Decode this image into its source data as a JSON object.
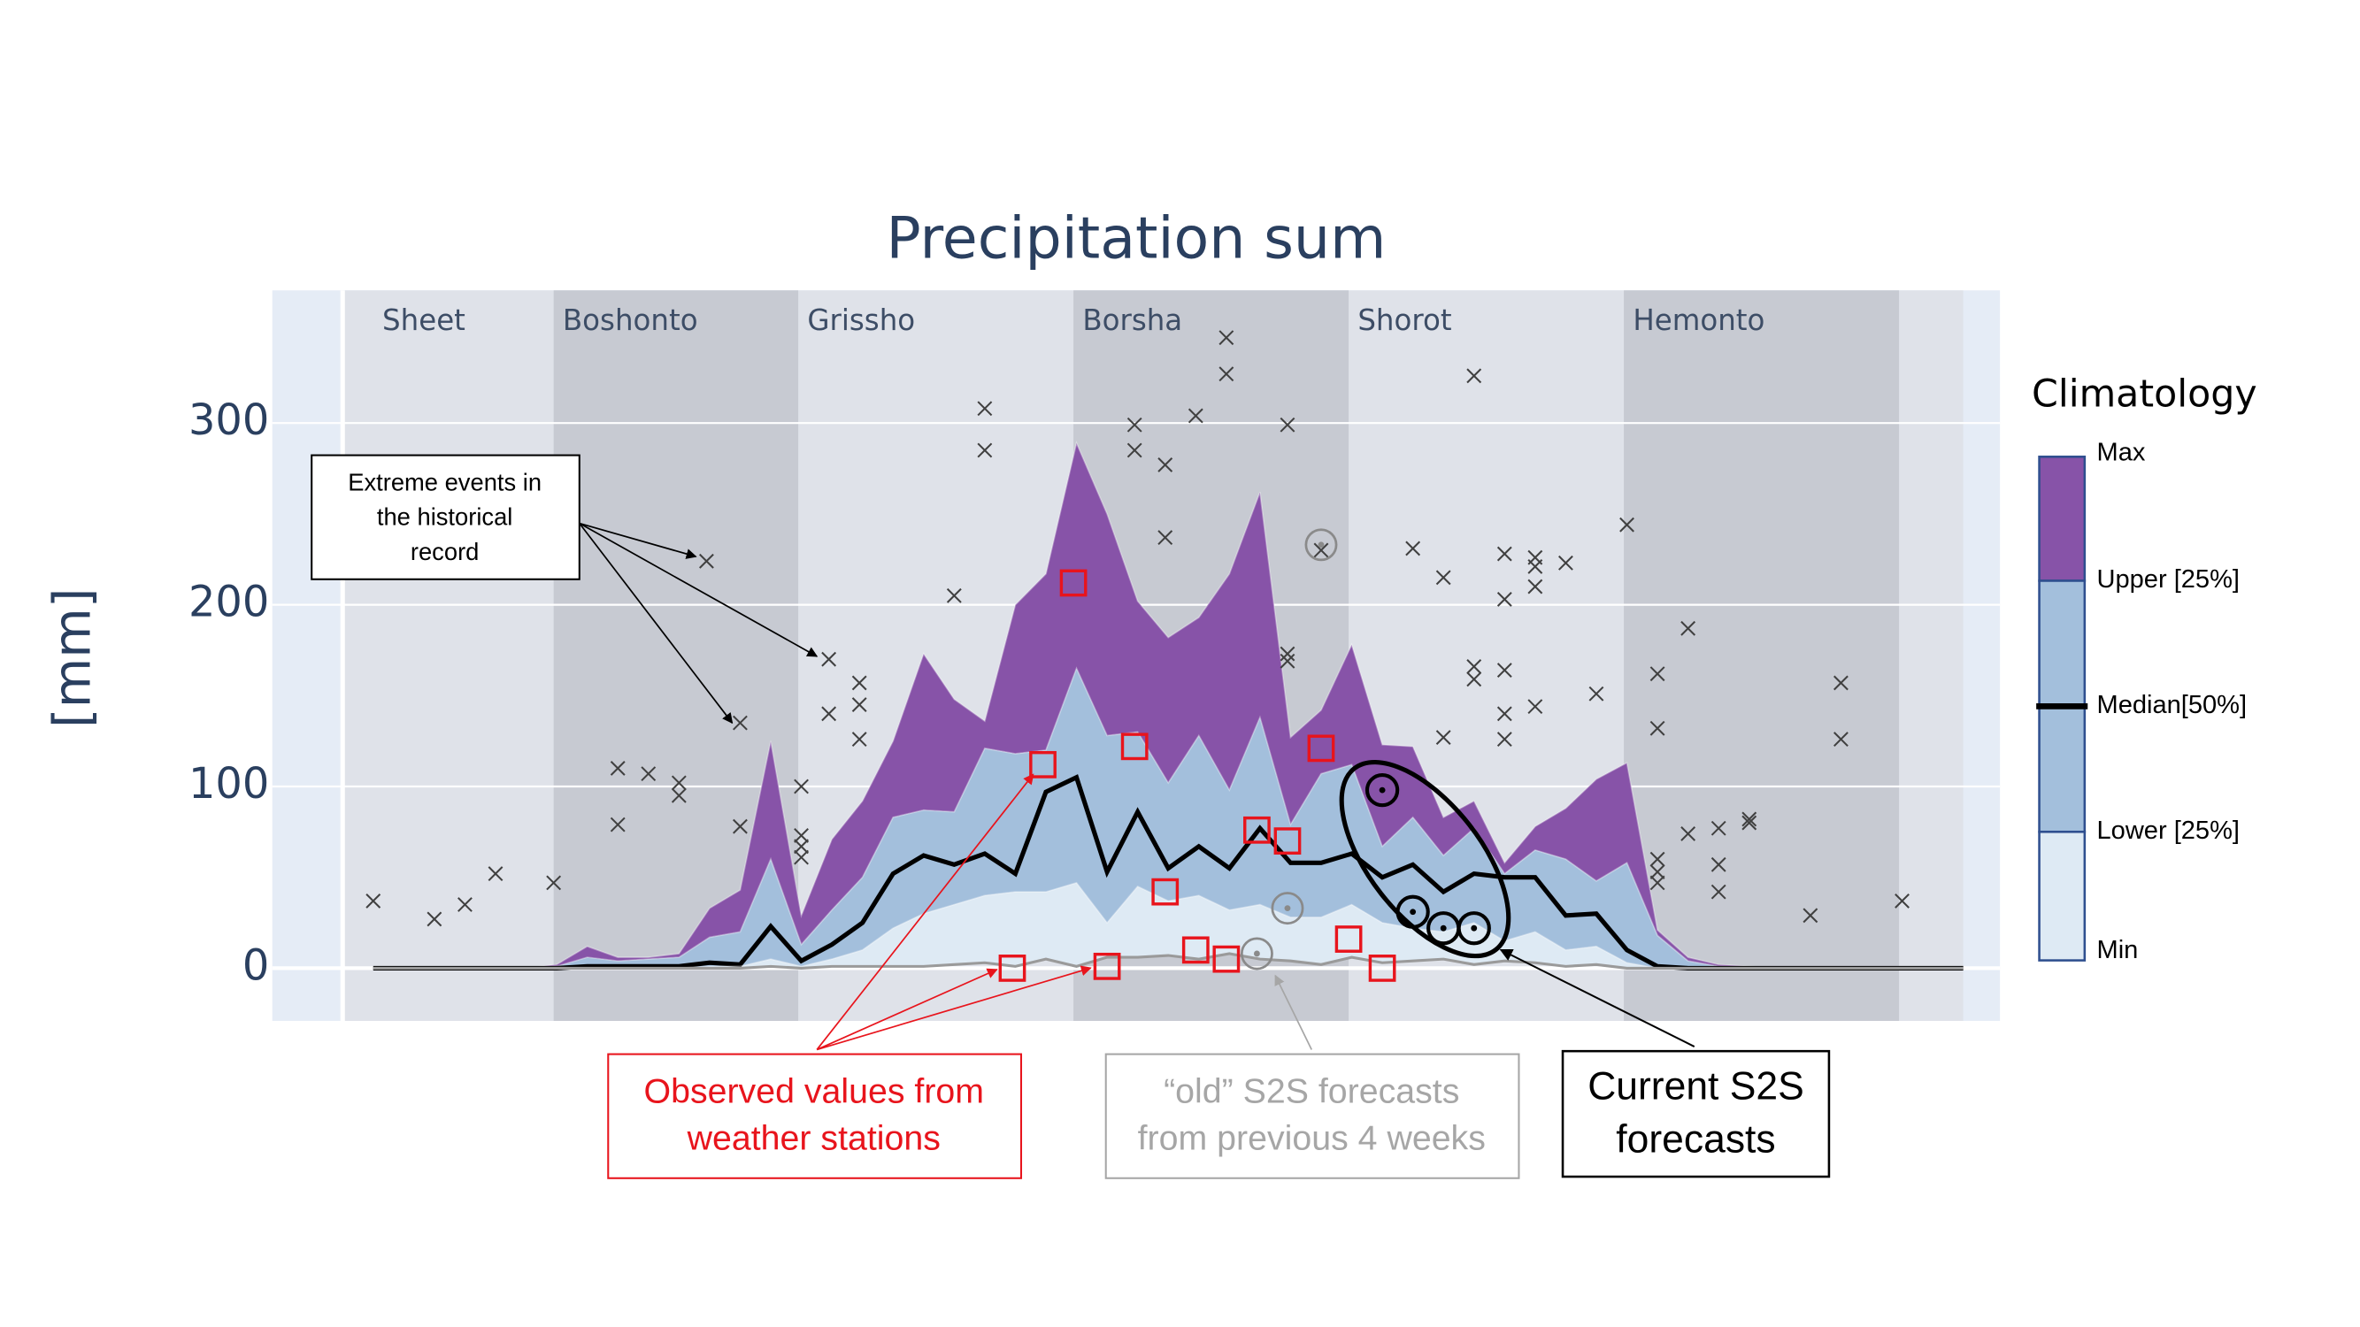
{
  "chart_data": {
    "type": "area",
    "title": "Precipitation sum",
    "y_label": "[mm]",
    "xlim": [
      -3.3,
      53.2
    ],
    "ylim": [
      -29,
      373
    ],
    "yticks": [
      0,
      100,
      200,
      300
    ],
    "grid": true,
    "season_colors": {
      "plain": "#dfe2e9",
      "shaded": "#c7cad2"
    },
    "seasons": [
      {
        "name": "Sheet",
        "start": -1,
        "end": 5.9,
        "shaded": false
      },
      {
        "name": "Boshonto",
        "start": 5.9,
        "end": 13.9,
        "shaded": true
      },
      {
        "name": "Grissho",
        "start": 13.9,
        "end": 22.9,
        "shaded": false
      },
      {
        "name": "Borsha",
        "start": 22.9,
        "end": 31.9,
        "shaded": true
      },
      {
        "name": "Shorot",
        "start": 31.9,
        "end": 40.9,
        "shaded": false
      },
      {
        "name": "Hemonto",
        "start": 40.9,
        "end": 49.9,
        "shaded": true
      }
    ],
    "x": [
      0,
      1,
      2,
      3,
      4,
      5,
      6,
      7,
      8,
      9,
      10,
      11,
      12,
      13,
      14,
      15,
      16,
      17,
      18,
      19,
      20,
      21,
      22,
      23,
      24,
      25,
      26,
      27,
      28,
      29,
      30,
      31,
      32,
      33,
      34,
      35,
      36,
      37,
      38,
      39,
      40,
      41,
      42,
      43,
      44,
      45,
      46,
      47,
      48,
      49,
      50,
      51,
      52
    ],
    "legend_title": "Climatology",
    "series": [
      {
        "name": "Max",
        "color": "#8753a8",
        "values": [
          0,
          0,
          0,
          0,
          0,
          0,
          2,
          12,
          6,
          6,
          8,
          33,
          43,
          125,
          29,
          71,
          92,
          125,
          173,
          148,
          136,
          200,
          217,
          289,
          250,
          202,
          182,
          193,
          217,
          262,
          127,
          142,
          178,
          123,
          122,
          83,
          92,
          58,
          78,
          88,
          104,
          113,
          21,
          6,
          2,
          1,
          0,
          0,
          0,
          0,
          0,
          0,
          0
        ]
      },
      {
        "name": "Upper [25%]",
        "color": "#a3bfdc",
        "values": [
          0,
          0,
          0,
          0,
          0,
          0,
          1,
          6,
          4,
          5,
          6,
          17,
          20,
          60,
          13,
          32,
          50,
          83,
          87,
          86,
          121,
          118,
          120,
          165,
          128,
          130,
          102,
          128,
          98,
          138,
          79,
          107,
          112,
          67,
          83,
          62,
          77,
          52,
          65,
          60,
          48,
          58,
          18,
          4,
          1,
          0,
          0,
          0,
          0,
          0,
          0,
          0,
          0
        ]
      },
      {
        "name": "Median[50%]",
        "color": "#000000",
        "values": [
          0,
          0,
          0,
          0,
          0,
          0,
          0,
          1,
          1,
          1,
          1,
          3,
          2,
          23,
          4,
          13,
          25,
          52,
          62,
          57,
          63,
          52,
          97,
          105,
          53,
          86,
          55,
          67,
          55,
          77,
          58,
          58,
          63,
          50,
          57,
          42,
          52,
          50,
          50,
          29,
          30,
          10,
          1,
          0,
          0,
          0,
          0,
          0,
          0,
          0,
          0,
          0,
          0
        ]
      },
      {
        "name": "Lower [25%]",
        "color": "#a3bfdc",
        "values": [
          0,
          0,
          0,
          0,
          0,
          0,
          0,
          0,
          0,
          0,
          0,
          1,
          1,
          5,
          1,
          5,
          10,
          22,
          30,
          35,
          40,
          42,
          42,
          47,
          25,
          45,
          37,
          40,
          32,
          35,
          28,
          28,
          35,
          25,
          22,
          20,
          25,
          15,
          20,
          10,
          12,
          3,
          0,
          0,
          0,
          0,
          0,
          0,
          0,
          0,
          0,
          0,
          0
        ]
      },
      {
        "name": "Min",
        "color": "#deeaf4",
        "line_color": "#9a9a9a",
        "values": [
          0,
          0,
          0,
          0,
          0,
          0,
          0,
          0,
          0,
          0,
          0,
          0,
          0,
          1,
          0,
          1,
          1,
          1,
          1,
          2,
          3,
          1,
          5,
          1,
          6,
          6,
          7,
          5,
          8,
          5,
          4,
          2,
          6,
          3,
          4,
          5,
          2,
          4,
          3,
          1,
          2,
          0,
          0,
          0,
          0,
          0,
          0,
          0,
          0,
          0,
          0,
          0,
          0
        ]
      }
    ],
    "extremes": {
      "color": "#404040",
      "x": [
        0,
        2,
        3,
        4,
        5.9,
        8,
        8,
        9,
        10,
        10,
        10.9,
        12,
        12,
        14,
        14,
        14,
        14,
        14.9,
        14.9,
        15.9,
        15.9,
        15.9,
        19,
        20,
        20,
        24.9,
        24.9,
        25.9,
        25.9,
        26.9,
        27.9,
        27.9,
        29.9,
        29.9,
        29.9,
        31,
        34,
        35,
        36,
        36,
        36,
        35,
        37,
        37,
        37,
        37,
        37,
        38,
        38,
        38,
        38,
        39,
        40,
        41,
        42,
        42,
        42,
        42,
        42,
        43,
        43,
        44,
        44,
        44,
        45,
        45,
        47,
        48,
        48,
        50
      ],
      "values": [
        37,
        27,
        35,
        52,
        47,
        110,
        79,
        107,
        102,
        95,
        224,
        78,
        135,
        100,
        73,
        67,
        61,
        170,
        140,
        157,
        145,
        126,
        205,
        308,
        285,
        299,
        285,
        277,
        237,
        304,
        347,
        327,
        299,
        173,
        169,
        230,
        231,
        215,
        326,
        166,
        159,
        127,
        228,
        203,
        164,
        140,
        126,
        226,
        221,
        210,
        144,
        223,
        151,
        244,
        162,
        132,
        60,
        53,
        47,
        187,
        74,
        77,
        57,
        42,
        82,
        80,
        29,
        157,
        126,
        37
      ]
    },
    "observed": {
      "color": "#e8141c",
      "x": [
        22.9,
        21.9,
        24.9,
        31,
        28.9,
        29.9,
        25.9,
        20.9,
        24,
        26.9,
        27.9,
        31.9,
        33
      ],
      "values": [
        212,
        112,
        122,
        121,
        76,
        70,
        42,
        0,
        1,
        10,
        5,
        16,
        0
      ]
    },
    "old_forecasts": {
      "color": "#8a8a8a",
      "x": [
        31,
        29.9,
        28.9
      ],
      "values": [
        233,
        33,
        8
      ]
    },
    "current_forecasts": {
      "color": "#000000",
      "x": [
        33,
        34,
        35,
        36
      ],
      "values": [
        98,
        31,
        22,
        22
      ]
    }
  },
  "annotations": {
    "extreme_events": [
      "Extreme events in",
      "the historical",
      "record"
    ],
    "observed": [
      "Observed values from",
      "weather stations"
    ],
    "old_forecasts": [
      "“old” S2S forecasts",
      "from previous 4 weeks"
    ],
    "current_forecasts": [
      "Current S2S",
      "forecasts"
    ]
  }
}
